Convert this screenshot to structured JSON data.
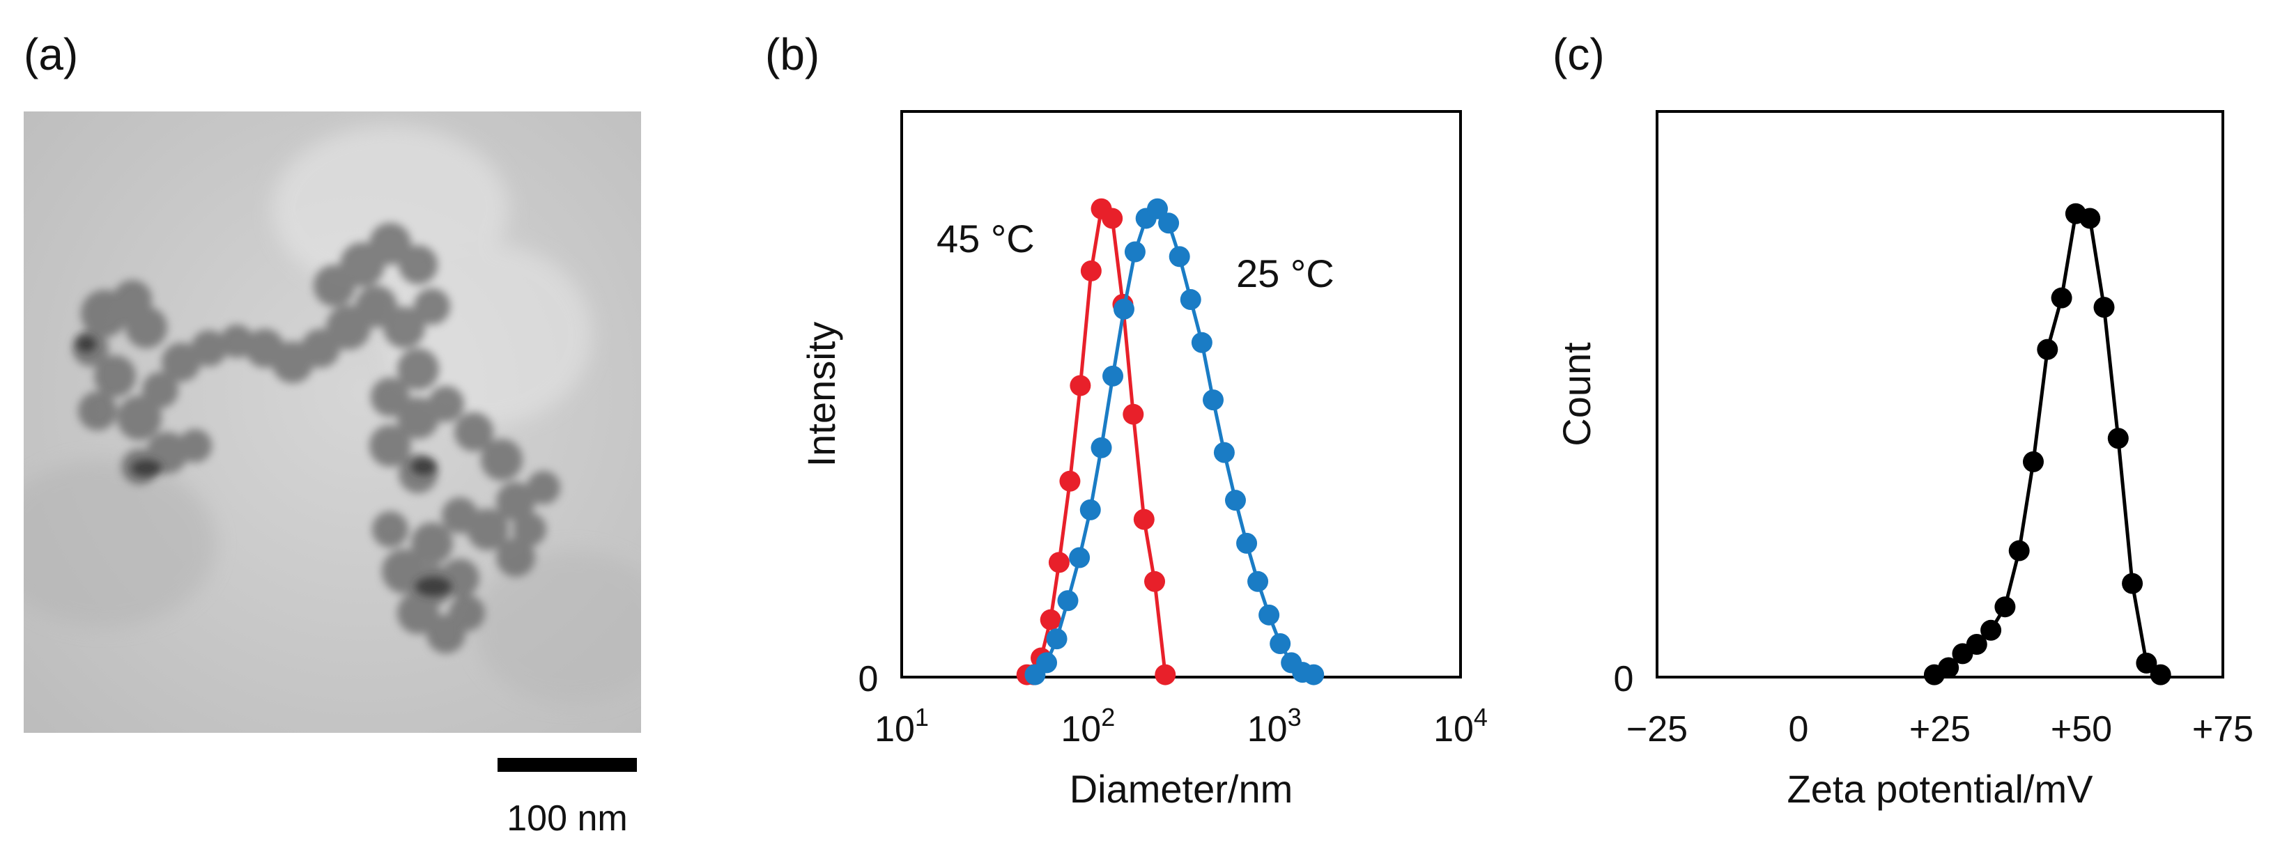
{
  "panels": {
    "a": {
      "label": "(a)",
      "scalebar_label": "100 nm"
    },
    "b": {
      "label": "(b)"
    },
    "c": {
      "label": "(c)"
    }
  },
  "chart_data": [
    {
      "panel": "(b)",
      "type": "line",
      "title": "",
      "xlabel": "Diameter/nm",
      "ylabel": "Intensity",
      "xscale": "log",
      "xlim": [
        10,
        10000
      ],
      "ylim": [
        0,
        100
      ],
      "x_tick_labels": [
        {
          "base": "10",
          "exp": "1"
        },
        {
          "base": "10",
          "exp": "2"
        },
        {
          "base": "10",
          "exp": "3"
        },
        {
          "base": "10",
          "exp": "4"
        }
      ],
      "y_tick_labels": [
        "0"
      ],
      "grid": false,
      "series": [
        {
          "name": "45 °C",
          "color": "#e8202a",
          "x": [
            47,
            51,
            56,
            63,
            70,
            80,
            91,
            104,
            118,
            135,
            154,
            175,
            200,
            228,
            260
          ],
          "y": [
            0.5,
            0.5,
            4,
            12,
            24,
            41,
            61,
            85,
            98,
            96,
            78,
            55,
            33,
            20,
            0.5
          ]
        },
        {
          "name": "25 °C",
          "color": "#1a7cc5",
          "x": [
            52,
            60,
            68,
            78,
            90,
            103,
            118,
            136,
            156,
            179,
            205,
            236,
            271,
            310,
            356,
            409,
            470,
            539,
            619,
            711,
            816,
            937,
            1076,
            1235,
            1418,
            1628
          ],
          "y": [
            0.5,
            3,
            8,
            16,
            25,
            35,
            48,
            63,
            77,
            89,
            96,
            98,
            95,
            88,
            79,
            70,
            58,
            47,
            37,
            28,
            20,
            13,
            7,
            3,
            1,
            0.5
          ]
        }
      ],
      "annotations": [
        {
          "text": "45 °C",
          "color": "#e8202a"
        },
        {
          "text": "25 °C",
          "color": "#1a7cc5"
        }
      ]
    },
    {
      "panel": "(c)",
      "type": "line",
      "title": "",
      "xlabel": "Zeta potential/mV",
      "ylabel": "Count",
      "xlim": [
        -25,
        75
      ],
      "ylim": [
        0,
        100
      ],
      "x_tick_labels": [
        "−25",
        "0",
        "+25",
        "+50",
        "+75"
      ],
      "y_tick_labels": [
        "0"
      ],
      "grid": false,
      "series": [
        {
          "name": "Zeta potential",
          "color": "#000000",
          "x": [
            24,
            26.5,
            29,
            31.5,
            34,
            36.5,
            39,
            41.5,
            44,
            46.5,
            49,
            51.5,
            54,
            56.5,
            59,
            61.5,
            64
          ],
          "y": [
            0.5,
            2,
            5,
            7,
            10,
            15,
            27,
            46,
            70,
            81,
            99,
            98,
            79,
            51,
            20,
            3,
            0.5
          ]
        }
      ]
    }
  ]
}
